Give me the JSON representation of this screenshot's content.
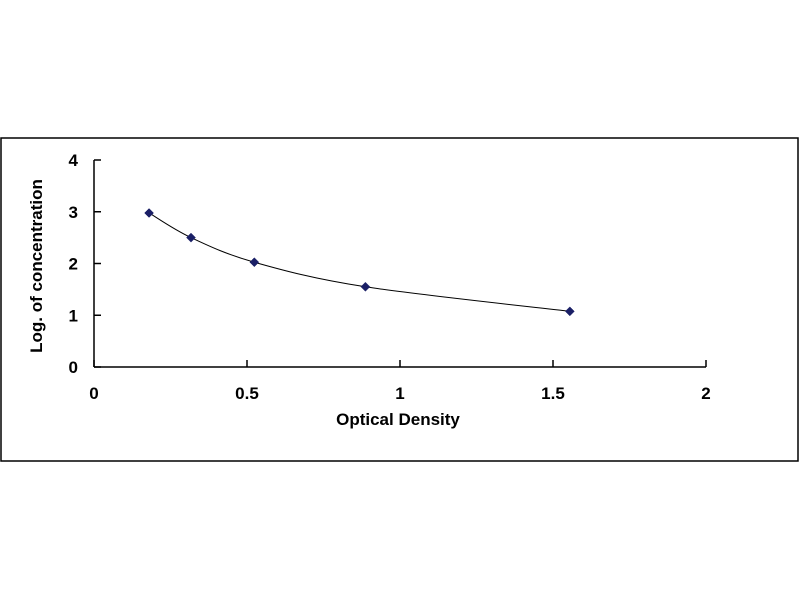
{
  "chart_data": {
    "type": "scatter",
    "title": "",
    "xlabel": "Optical Density",
    "ylabel": "Log. of concentration",
    "xlim": [
      0,
      2
    ],
    "ylim": [
      0,
      4
    ],
    "x_ticks": [
      0,
      0.5,
      1,
      1.5,
      2
    ],
    "y_ticks": [
      0,
      1,
      2,
      3,
      4
    ],
    "x_tick_labels": [
      "0",
      "0.5",
      "1",
      "1.5",
      "2"
    ],
    "y_tick_labels": [
      "0",
      "1",
      "2",
      "3",
      "4"
    ],
    "grid": false,
    "legend": "none",
    "trendline": "smooth curve",
    "colors": {
      "marker": "#1a1f66",
      "line": "#000000",
      "frame": "#000000"
    },
    "series": [
      {
        "x": [
          0.18,
          0.317,
          0.524,
          0.887,
          1.555
        ],
        "y": [
          2.976,
          2.5,
          2.025,
          1.55,
          1.075
        ]
      }
    ]
  }
}
